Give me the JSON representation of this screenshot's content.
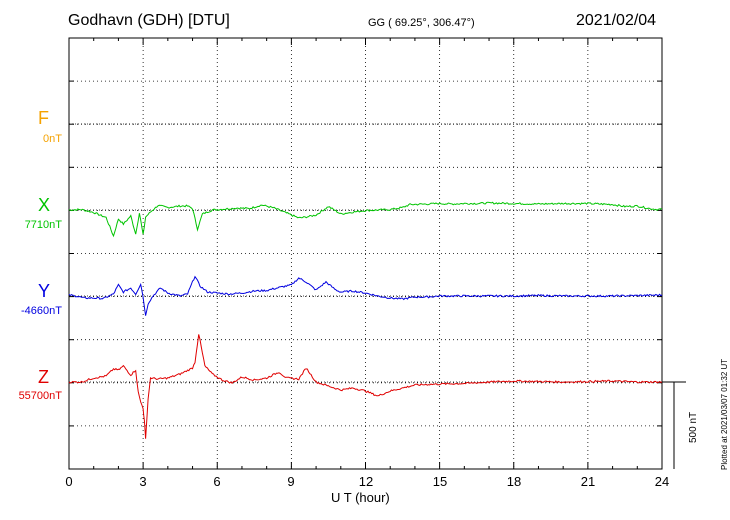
{
  "header": {
    "station": "Godhavn (GDH)  [DTU]",
    "coords": "GG ( 69.25°, 306.47°)",
    "date": "2021/02/04"
  },
  "components": [
    {
      "letter": "F",
      "base": "0nT",
      "color": "#f5a200"
    },
    {
      "letter": "X",
      "base": "7710nT",
      "color": "#00c400"
    },
    {
      "letter": "Y",
      "base": "-4660nT",
      "color": "#0000e0"
    },
    {
      "letter": "Z",
      "base": "55700nT",
      "color": "#e00000"
    }
  ],
  "axis": {
    "xlabel": "U T (hour)",
    "ticks": [
      "0",
      "3",
      "6",
      "9",
      "12",
      "15",
      "18",
      "21",
      "24"
    ]
  },
  "scale_bar": "500 nT",
  "plotted_note": "Plotted at 2021/03/07 01:32 UT",
  "chart_data": {
    "type": "line",
    "xlabel": "U T (hour)",
    "ylabel": "",
    "xlim": [
      0,
      24
    ],
    "x_ticks": [
      0,
      3,
      6,
      9,
      12,
      15,
      18,
      21,
      24
    ],
    "grid": true,
    "scale_bar_nT": 500,
    "series": [
      {
        "name": "F",
        "baseline_nT": 0,
        "color": "#f5a200",
        "x": [],
        "values": []
      },
      {
        "name": "X",
        "baseline_nT": 7710,
        "color": "#00c400",
        "x": [
          0,
          0.5,
          1.0,
          1.5,
          1.8,
          2.0,
          2.2,
          2.5,
          2.7,
          2.85,
          3.0,
          3.1,
          3.3,
          3.6,
          4.0,
          4.5,
          4.8,
          5.0,
          5.2,
          5.4,
          5.8,
          6.3,
          6.8,
          7.3,
          7.8,
          8.3,
          8.8,
          9.3,
          9.6,
          10.0,
          10.5,
          11.0,
          11.5,
          12.0,
          12.5,
          13.0,
          13.5,
          13.8,
          14.5,
          15.0,
          15.5,
          16.0,
          16.5,
          17.0,
          18.0,
          19.0,
          20.0,
          21.0,
          22.0,
          22.5,
          23.0,
          23.5,
          23.8,
          24.0
        ],
        "values": [
          0,
          5,
          -25,
          -75,
          -260,
          -90,
          -140,
          -60,
          -240,
          -30,
          -250,
          -70,
          -20,
          45,
          25,
          40,
          40,
          15,
          -190,
          -40,
          0,
          10,
          20,
          15,
          50,
          20,
          -30,
          -80,
          -70,
          -50,
          35,
          -40,
          -20,
          -5,
          0,
          5,
          25,
          55,
          60,
          65,
          60,
          65,
          65,
          70,
          65,
          60,
          65,
          65,
          55,
          35,
          40,
          15,
          5,
          10
        ]
      },
      {
        "name": "Y",
        "baseline_nT": -4660,
        "color": "#0000e0",
        "x": [
          0,
          0.3,
          0.6,
          1.0,
          1.4,
          1.8,
          2.0,
          2.2,
          2.5,
          2.7,
          2.9,
          3.0,
          3.1,
          3.2,
          3.4,
          3.7,
          4.0,
          4.5,
          4.8,
          5.1,
          5.3,
          5.6,
          6.0,
          6.5,
          7.0,
          7.5,
          8.0,
          8.5,
          9.0,
          9.3,
          9.6,
          10.0,
          10.4,
          10.8,
          11.0,
          11.5,
          12.0,
          12.5,
          13.0,
          13.5,
          14.0,
          14.5,
          15.0,
          16.0,
          17.0,
          18.0,
          19.0,
          20.0,
          21.0,
          22.0,
          23.0,
          24.0
        ],
        "values": [
          10,
          0,
          -20,
          -20,
          -25,
          20,
          110,
          40,
          80,
          20,
          120,
          -10,
          -200,
          -75,
          0,
          80,
          30,
          0,
          20,
          200,
          100,
          40,
          30,
          20,
          30,
          50,
          55,
          85,
          110,
          180,
          140,
          60,
          140,
          60,
          40,
          50,
          30,
          0,
          -20,
          -30,
          -10,
          -10,
          0,
          0,
          0,
          0,
          5,
          0,
          0,
          0,
          5,
          10
        ]
      },
      {
        "name": "Z",
        "baseline_nT": 55700,
        "color": "#e00000",
        "x": [
          0,
          0.5,
          1.0,
          1.5,
          1.8,
          2.0,
          2.2,
          2.5,
          2.7,
          2.8,
          2.9,
          3.0,
          3.05,
          3.1,
          3.2,
          3.3,
          3.6,
          4.0,
          4.5,
          5.0,
          5.1,
          5.25,
          5.5,
          5.8,
          6.2,
          6.6,
          7.0,
          7.5,
          8.0,
          8.5,
          8.8,
          9.3,
          9.6,
          10.0,
          10.5,
          11.0,
          11.5,
          12.0,
          12.5,
          13.0,
          13.5,
          14.0,
          15.0,
          16.0,
          17.0,
          18.0,
          19.0,
          20.0,
          21.0,
          22.0,
          23.0,
          24.0
        ],
        "values": [
          0,
          0,
          40,
          60,
          130,
          120,
          160,
          70,
          120,
          -100,
          -200,
          -260,
          -390,
          -570,
          -170,
          40,
          30,
          40,
          80,
          140,
          200,
          480,
          160,
          80,
          20,
          -10,
          50,
          20,
          40,
          100,
          40,
          30,
          140,
          0,
          -40,
          -80,
          -60,
          -90,
          -140,
          -90,
          -60,
          -30,
          -20,
          -15,
          0,
          10,
          5,
          0,
          5,
          10,
          0,
          0
        ]
      }
    ]
  }
}
